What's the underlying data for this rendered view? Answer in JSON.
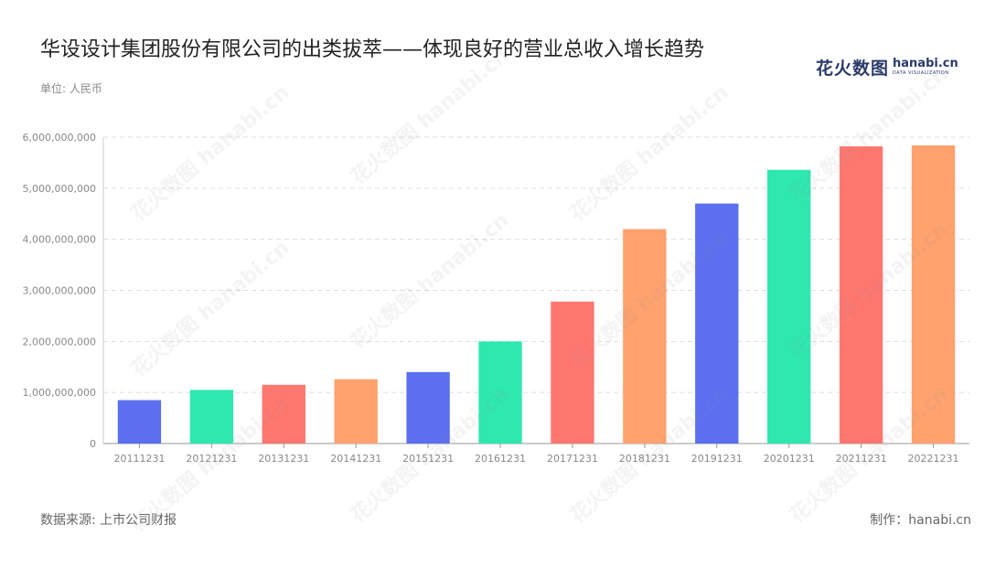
{
  "header": {
    "title": "华设设计集团股份有限公司的出类拔萃——体现良好的营业总收入增长趋势",
    "unit": "单位: 人民币"
  },
  "logo": {
    "cn": "花火数图",
    "en": "hanabi.cn",
    "sub": "DATA VISUALIZATION"
  },
  "footer": {
    "source": "数据来源: 上市公司财报",
    "credit": "制作：hanabi.cn"
  },
  "watermark": "花火数图 hanabi.cn",
  "colors": [
    "#5b6ff0",
    "#2ee8b0",
    "#ff776f",
    "#ffa26e"
  ],
  "chart_data": {
    "type": "bar",
    "categories": [
      "20111231",
      "20121231",
      "20131231",
      "20141231",
      "20151231",
      "20161231",
      "20171231",
      "20181231",
      "20191231",
      "20201231",
      "20211231",
      "20221231"
    ],
    "values": [
      850000000,
      1050000000,
      1150000000,
      1260000000,
      1400000000,
      2000000000,
      2780000000,
      4200000000,
      4700000000,
      5360000000,
      5820000000,
      5840000000
    ],
    "yticks": [
      0,
      1000000000,
      2000000000,
      3000000000,
      4000000000,
      5000000000,
      6000000000
    ],
    "ytick_labels": [
      "0",
      "1,000,000,000",
      "2,000,000,000",
      "3,000,000,000",
      "4,000,000,000",
      "5,000,000,000",
      "6,000,000,000"
    ],
    "ylim": [
      0,
      6000000000
    ],
    "grid": true,
    "legend": "none"
  }
}
